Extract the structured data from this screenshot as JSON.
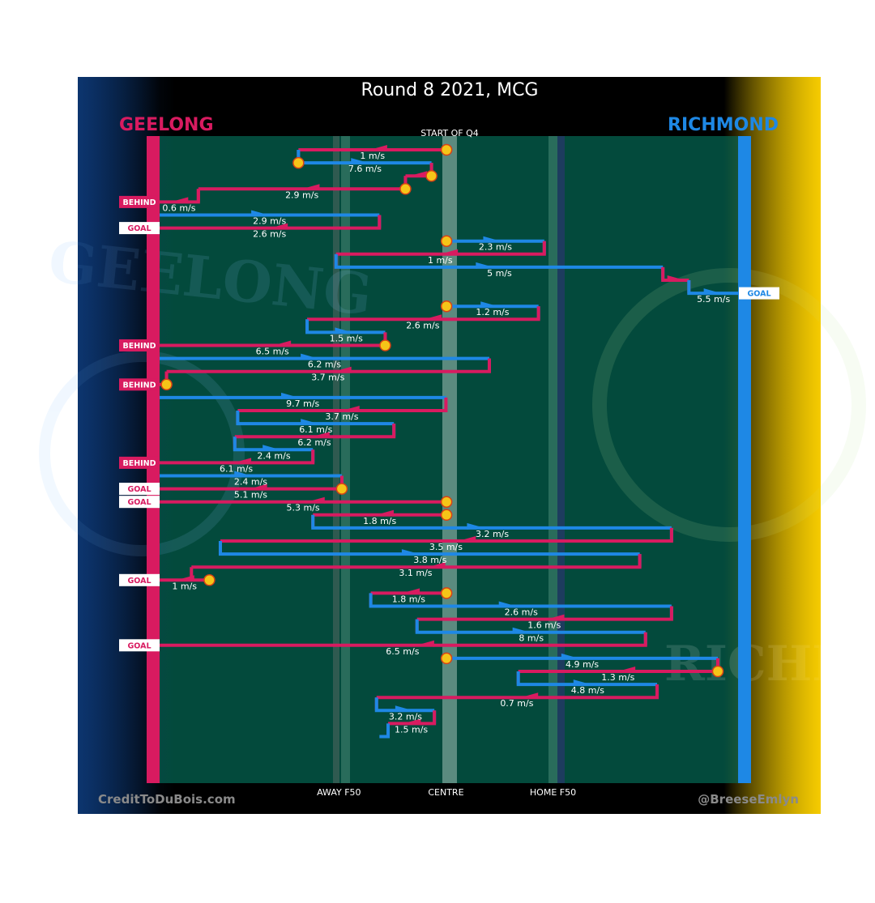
{
  "chart_data": {
    "type": "flow",
    "title": "Round 8 2021, MCG",
    "subtitle": "START OF Q4",
    "teams": {
      "left": "GEELONG",
      "right": "RICHMOND"
    },
    "colors": {
      "left": "#d81b60",
      "right": "#1e88e5",
      "ball": "#f5c518",
      "field": "#034a3c"
    },
    "x_axis": {
      "range": [
        0,
        100
      ],
      "ticks": [
        {
          "label": "AWAY F50",
          "value": 31
        },
        {
          "label": "CENTRE",
          "value": 49.5
        },
        {
          "label": "HOME F50",
          "value": 68
        }
      ]
    },
    "watermarks": {
      "left": "GEELONG",
      "right": "RICHMOND"
    },
    "credits": {
      "left": "CreditToDuBois.com",
      "right": "@BreeseEmlyn"
    },
    "chains": [
      {
        "team": "geelong",
        "label": "1 m/s",
        "start": 49.6,
        "corner": 24
      },
      {
        "team": "richmond",
        "label": "7.6 m/s",
        "start": 24,
        "corner": 47
      },
      {
        "team": "geelong",
        "label": "",
        "start": 47,
        "corner": 42.5
      },
      {
        "team": "geelong",
        "label": "2.9 m/s",
        "start": 42.5,
        "corner": 6.7
      },
      {
        "team": "geelong",
        "label": "0.6 m/s",
        "start": 6.7,
        "end": 0,
        "outcome": "BEHIND"
      },
      {
        "team": "richmond",
        "label": "2.9 m/s",
        "start": 0,
        "corner": 38
      },
      {
        "team": "geelong",
        "label": "2.6 m/s",
        "start": 38,
        "end": 0,
        "outcome": "GOAL"
      },
      {
        "team": "richmond",
        "label": "2.3 m/s",
        "start": 49.6,
        "corner": 66.5
      },
      {
        "team": "geelong",
        "label": "1 m/s",
        "start": 66.5,
        "corner": 30.5
      },
      {
        "team": "richmond",
        "label": "5 m/s",
        "start": 30.5,
        "corner": 87
      },
      {
        "team": "geelong",
        "label": "",
        "start": 87,
        "corner": 91.5
      },
      {
        "team": "richmond",
        "label": "5.5 m/s",
        "start": 91.5,
        "end": 100,
        "outcome": "GOAL"
      },
      {
        "team": "richmond",
        "label": "1.2 m/s",
        "start": 49.6,
        "corner": 65.5
      },
      {
        "team": "geelong",
        "label": "2.6 m/s",
        "start": 65.5,
        "corner": 25.5
      },
      {
        "team": "richmond",
        "label": "1.5 m/s",
        "start": 25.5,
        "corner": 39
      },
      {
        "team": "geelong",
        "label": "6.5 m/s",
        "start": 39,
        "end": 0,
        "outcome": "BEHIND"
      },
      {
        "team": "richmond",
        "label": "6.2 m/s",
        "start": 0,
        "corner": 57
      },
      {
        "team": "geelong",
        "label": "3.7 m/s",
        "start": 57,
        "corner": 1.2
      },
      {
        "team": "geelong",
        "label": "",
        "start": 1.2,
        "end": 0,
        "outcome": "BEHIND"
      },
      {
        "team": "richmond",
        "label": "9.7 m/s",
        "start": 0,
        "corner": 49.5
      },
      {
        "team": "geelong",
        "label": "3.7 m/s",
        "start": 49.5,
        "corner": 13.5
      },
      {
        "team": "richmond",
        "label": "6.1 m/s",
        "start": 13.5,
        "corner": 40.5
      },
      {
        "team": "geelong",
        "label": "6.2 m/s",
        "start": 40.5,
        "corner": 13
      },
      {
        "team": "richmond",
        "label": "2.4 m/s",
        "start": 13,
        "corner": 26.5
      },
      {
        "team": "geelong",
        "label": "6.1 m/s",
        "start": 26.5,
        "end": 0,
        "outcome": "BEHIND"
      },
      {
        "team": "richmond",
        "label": "2.4 m/s",
        "start": 0,
        "corner": 31.5
      },
      {
        "team": "geelong",
        "label": "5.1 m/s",
        "start": 31.5,
        "end": 0,
        "outcome": "GOAL"
      },
      {
        "team": "geelong",
        "label": "5.3 m/s",
        "start": 49.6,
        "end": 0,
        "outcome": "GOAL"
      },
      {
        "team": "geelong",
        "label": "1.8 m/s",
        "start": 49.6,
        "corner": 26.5
      },
      {
        "team": "richmond",
        "label": "3.2 m/s",
        "start": 26.5,
        "corner": 88.5
      },
      {
        "team": "geelong",
        "label": "3.5 m/s",
        "start": 88.5,
        "corner": 10.5
      },
      {
        "team": "richmond",
        "label": "3.8 m/s",
        "start": 10.5,
        "corner": 83
      },
      {
        "team": "geelong",
        "label": "3.1 m/s",
        "start": 83,
        "corner": 5.5
      },
      {
        "team": "geelong",
        "label": "1 m/s",
        "start": 8.6,
        "end": 0,
        "outcome": "GOAL"
      },
      {
        "team": "geelong",
        "label": "1.8 m/s",
        "start": 49.6,
        "corner": 36.5
      },
      {
        "team": "richmond",
        "label": "2.6 m/s",
        "start": 36.5,
        "corner": 88.5
      },
      {
        "team": "geelong",
        "label": "1.6 m/s",
        "start": 88.5,
        "corner": 44.5
      },
      {
        "team": "richmond",
        "label": "8 m/s",
        "start": 44.5,
        "corner": 84
      },
      {
        "team": "geelong",
        "label": "6.5 m/s",
        "start": 84,
        "end": 0,
        "outcome": "GOAL"
      },
      {
        "team": "richmond",
        "label": "4.9 m/s",
        "start": 49.6,
        "corner": 96.5
      },
      {
        "team": "geelong",
        "label": "1.3 m/s",
        "start": 96.5,
        "corner": 62
      },
      {
        "team": "richmond",
        "label": "4.8 m/s",
        "start": 62,
        "corner": 86
      },
      {
        "team": "geelong",
        "label": "0.7 m/s",
        "start": 86,
        "corner": 37.5
      },
      {
        "team": "richmond",
        "label": "3.2 m/s",
        "start": 37.5,
        "corner": 47.5
      },
      {
        "team": "geelong",
        "label": "1.5 m/s",
        "start": 47.5,
        "corner": 39.5
      },
      {
        "team": "richmond",
        "label": "",
        "start": 39.5,
        "corner": 38
      }
    ]
  }
}
